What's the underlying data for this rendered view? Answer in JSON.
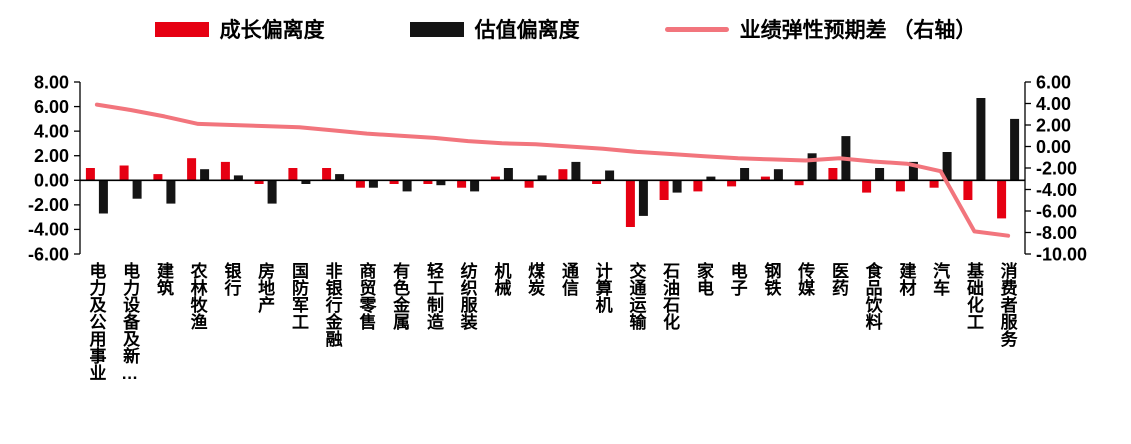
{
  "legend": [
    {
      "label": "成长偏离度",
      "type": "bar",
      "color": "#E60012"
    },
    {
      "label": "估值偏离度",
      "type": "bar",
      "color": "#141414"
    },
    {
      "label": "业绩弹性预期差 （右轴）",
      "type": "line",
      "color": "#F2757D"
    }
  ],
  "chart_data": {
    "type": "bar",
    "subtype": "combo-bar-line",
    "title": "",
    "xlabel": "",
    "ylabel_left": "",
    "ylabel_right": "",
    "grid": false,
    "legend_position": "top",
    "categories": [
      "电力及公用事业",
      "电力设备及新…",
      "建筑",
      "农林牧渔",
      "银行",
      "房地产",
      "国防军工",
      "非银行金融",
      "商贸零售",
      "有色金属",
      "轻工制造",
      "纺织服装",
      "机械",
      "煤炭",
      "通信",
      "计算机",
      "交通运输",
      "石油石化",
      "家电",
      "电子",
      "钢铁",
      "传媒",
      "医药",
      "食品饮料",
      "建材",
      "汽车",
      "基础化工",
      "消费者服务"
    ],
    "series": [
      {
        "name": "成长偏离度",
        "type": "bar",
        "axis": "left",
        "color": "#E60012",
        "values": [
          1.0,
          1.2,
          0.5,
          1.8,
          1.5,
          -0.3,
          1.0,
          1.0,
          -0.6,
          -0.3,
          -0.3,
          -0.6,
          0.3,
          -0.6,
          0.9,
          -0.3,
          -3.8,
          -1.6,
          -0.9,
          -0.5,
          0.3,
          -0.4,
          1.0,
          -1.0,
          -0.9,
          -0.6,
          -1.6,
          -3.1
        ]
      },
      {
        "name": "估值偏离度",
        "type": "bar",
        "axis": "left",
        "color": "#141414",
        "values": [
          -2.7,
          -1.5,
          -1.9,
          0.9,
          0.4,
          -1.9,
          -0.3,
          0.5,
          -0.6,
          -0.9,
          -0.4,
          -0.9,
          1.0,
          0.4,
          1.5,
          0.8,
          -2.9,
          -1.0,
          0.3,
          1.0,
          0.9,
          2.2,
          3.6,
          1.0,
          1.5,
          2.3,
          6.7,
          5.0
        ]
      },
      {
        "name": "业绩弹性预期差（右轴）",
        "type": "line",
        "axis": "right",
        "color": "#F2757D",
        "values": [
          3.9,
          3.4,
          2.8,
          2.1,
          2.0,
          1.9,
          1.8,
          1.5,
          1.2,
          1.0,
          0.8,
          0.5,
          0.3,
          0.2,
          0.0,
          -0.2,
          -0.5,
          -0.7,
          -0.9,
          -1.1,
          -1.2,
          -1.3,
          -1.1,
          -1.4,
          -1.6,
          -2.3,
          -7.9,
          -8.3
        ]
      }
    ],
    "left_axis": {
      "min": -6,
      "max": 8,
      "step": 2,
      "ticks": [
        "8.00",
        "6.00",
        "4.00",
        "2.00",
        "0.00",
        "-2.00",
        "-4.00",
        "-6.00"
      ]
    },
    "right_axis": {
      "min": -10,
      "max": 6,
      "step": 2,
      "ticks": [
        "6.00",
        "4.00",
        "2.00",
        "0.00",
        "-2.00",
        "-4.00",
        "-6.00",
        "-8.00",
        "-10.00"
      ]
    }
  }
}
